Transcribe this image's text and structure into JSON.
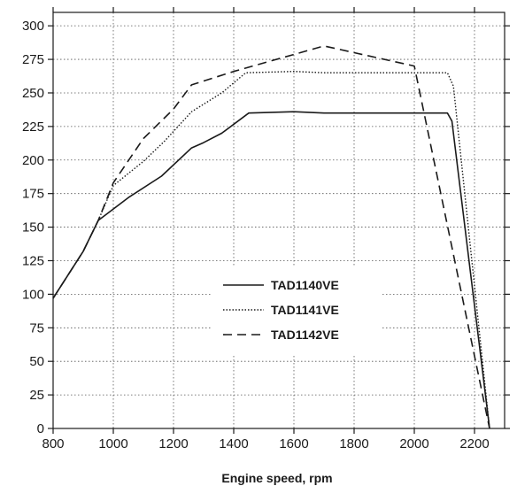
{
  "chart_data": {
    "type": "line",
    "xlabel": "Engine speed, rpm",
    "ylabel": "",
    "xlim": [
      800,
      2300
    ],
    "ylim": [
      0,
      310
    ],
    "x_ticks": [
      800,
      1000,
      1200,
      1400,
      1600,
      1800,
      2000,
      2200
    ],
    "y_ticks": [
      0,
      25,
      50,
      75,
      100,
      125,
      150,
      175,
      200,
      225,
      250,
      275,
      300
    ],
    "grid": true,
    "legend_position": "center",
    "series": [
      {
        "name": "TAD1140VE",
        "style": "solid",
        "x": [
          800,
          900,
          950,
          1050,
          1160,
          1260,
          1300,
          1360,
          1450,
          1600,
          1700,
          2000,
          2110,
          2125,
          2250
        ],
        "y": [
          97,
          132,
          155,
          172,
          188,
          209,
          213,
          220,
          235,
          236,
          235,
          235,
          235,
          229,
          0
        ]
      },
      {
        "name": "TAD1141VE",
        "style": "dotted",
        "x": [
          800,
          900,
          950,
          1000,
          1100,
          1170,
          1260,
          1360,
          1440,
          1600,
          1700,
          2000,
          2110,
          2130,
          2250
        ],
        "y": [
          97,
          132,
          155,
          181,
          199,
          214,
          236,
          250,
          265,
          266,
          265,
          265,
          265,
          255,
          0
        ]
      },
      {
        "name": "TAD1142VE",
        "style": "dashed",
        "x": [
          800,
          900,
          950,
          1000,
          1100,
          1200,
          1260,
          1400,
          1700,
          2000,
          2250
        ],
        "y": [
          97,
          132,
          155,
          183,
          216,
          238,
          256,
          266,
          285,
          270,
          0
        ]
      }
    ]
  }
}
